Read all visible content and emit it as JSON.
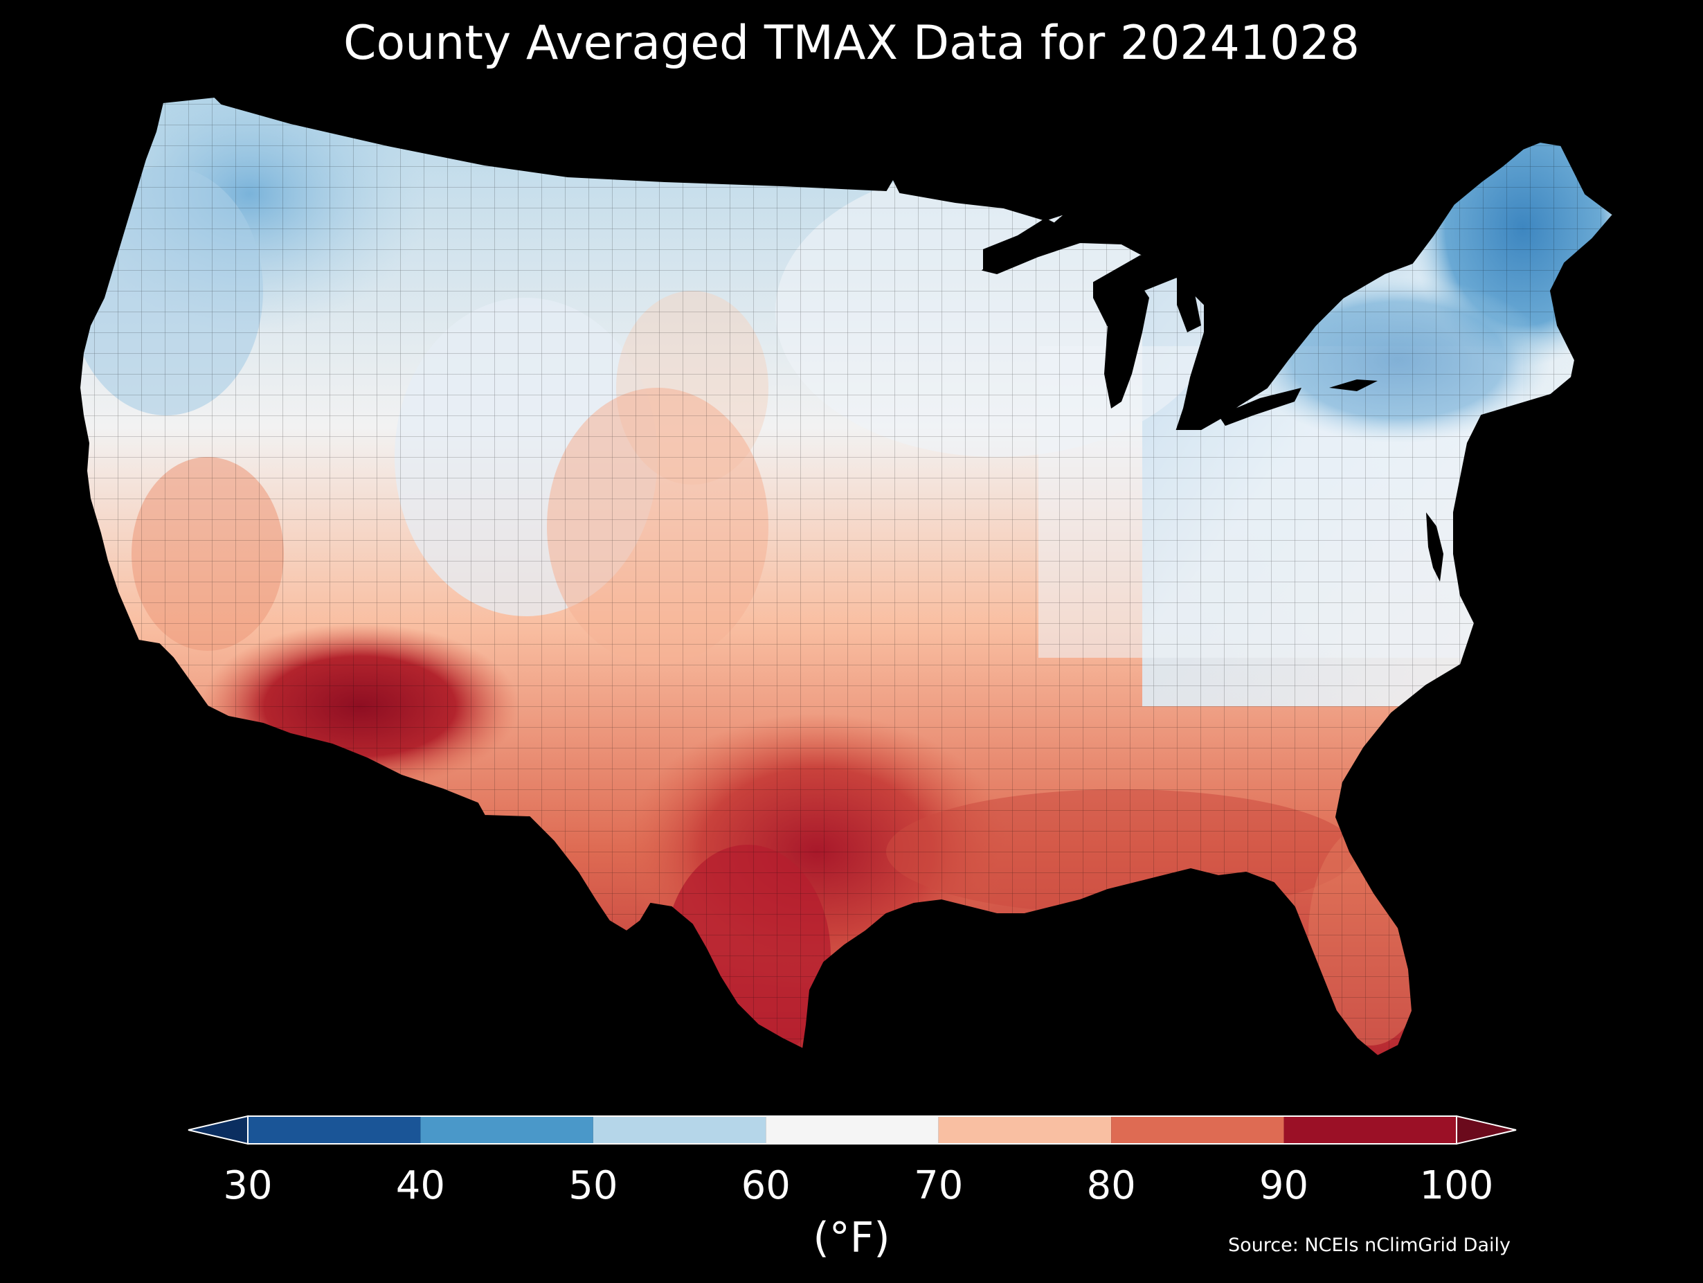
{
  "title": "County Averaged TMAX Data for 20241028",
  "colorbar": {
    "ticks": [
      "30",
      "40",
      "50",
      "60",
      "70",
      "80",
      "90",
      "100"
    ],
    "unit": "(°F)",
    "bins": [
      {
        "min": 30,
        "max": 40,
        "color": "#1a5597"
      },
      {
        "min": 40,
        "max": 50,
        "color": "#4a98c9"
      },
      {
        "min": 50,
        "max": 60,
        "color": "#b5d6e9"
      },
      {
        "min": 60,
        "max": 70,
        "color": "#f5f5f5"
      },
      {
        "min": 70,
        "max": 80,
        "color": "#f9bfa2"
      },
      {
        "min": 80,
        "max": 90,
        "color": "#de6b53"
      },
      {
        "min": 90,
        "max": 100,
        "color": "#9b1026"
      }
    ],
    "under_color": "#0b2e60",
    "over_color": "#6b0a1c"
  },
  "source": "Source: NCEIs nClimGrid Daily",
  "map": {
    "region": "Contiguous United States",
    "variable": "TMAX"
  }
}
